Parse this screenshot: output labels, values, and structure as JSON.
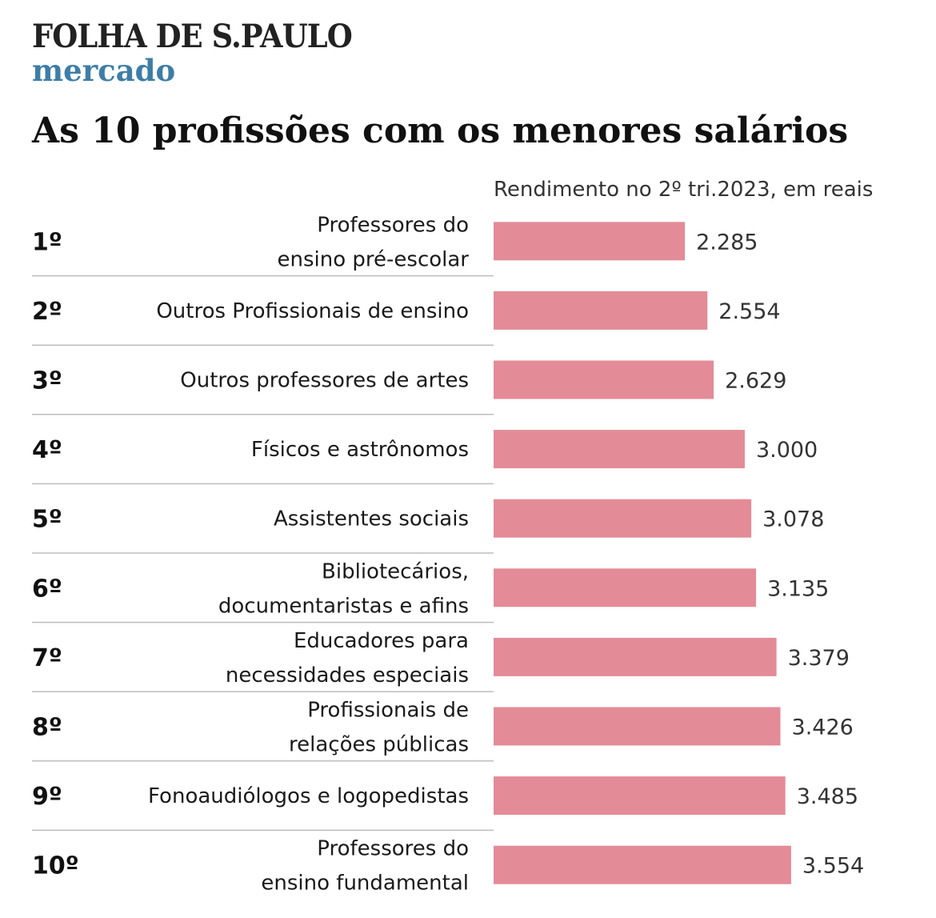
{
  "header": {
    "brand": "FOLHA DE S.PAULO",
    "section": "mercado"
  },
  "colors": {
    "bar": "#e48b98",
    "divider": "#bdbdbd",
    "section": "#3d7ea6"
  },
  "chart_data": {
    "type": "bar",
    "orientation": "horizontal",
    "title": "As 10 profissões com os menores salários",
    "subtitle": "Rendimento no 2º tri.2023, em reais",
    "ranks": [
      "1º",
      "2º",
      "3º",
      "4º",
      "5º",
      "6º",
      "7º",
      "8º",
      "9º",
      "10º"
    ],
    "categories": [
      [
        "Professores do",
        "ensino pré-escolar"
      ],
      [
        "Outros Profissionais de ensino"
      ],
      [
        "Outros professores de artes"
      ],
      [
        "Físicos e astrônomos"
      ],
      [
        "Assistentes sociais"
      ],
      [
        "Bibliotecários,",
        "documentaristas e afins"
      ],
      [
        "Educadores para",
        "necessidades especiais"
      ],
      [
        "Profissionais de",
        "relações públicas"
      ],
      [
        "Fonoaudiólogos e logopedistas"
      ],
      [
        "Professores do",
        "ensino fundamental"
      ]
    ],
    "values": [
      2285,
      2554,
      2629,
      3000,
      3078,
      3135,
      3379,
      3426,
      3485,
      3554
    ],
    "value_labels": [
      "2.285",
      "2.554",
      "2.629",
      "3.000",
      "3.078",
      "3.135",
      "3.379",
      "3.426",
      "3.485",
      "3.554"
    ],
    "grid": false,
    "legend": "none"
  }
}
